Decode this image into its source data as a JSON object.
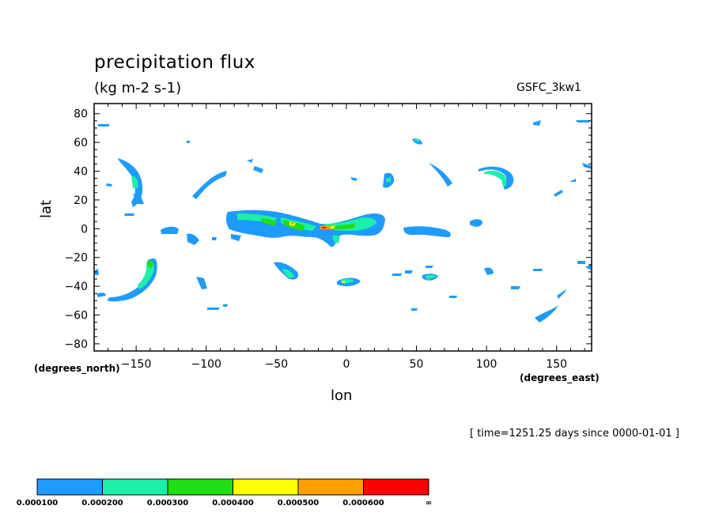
{
  "chart_data": {
    "type": "heatmap",
    "title": "precipitation flux",
    "units_label": "(kg m-2 s-1)",
    "source_label": "GSFC_3kw1",
    "xlabel": "lon",
    "ylabel": "lat",
    "x_units_label": "(degrees_east)",
    "y_units_label": "(degrees_north)",
    "xlim": [
      -180,
      175
    ],
    "ylim": [
      -85,
      87
    ],
    "x_ticks": [
      -150,
      -100,
      -50,
      0,
      50,
      100,
      150
    ],
    "x_tick_labels": [
      "−150",
      "−100",
      "−50",
      "0",
      "50",
      "100",
      "150"
    ],
    "y_ticks": [
      80,
      60,
      40,
      20,
      0,
      -20,
      -40,
      -60,
      -80
    ],
    "y_tick_labels": [
      "80",
      "60",
      "40",
      "20",
      "0",
      "−20",
      "−40",
      "−60",
      "−80"
    ],
    "time_label": "[ time=1251.25 days since 0000-01-01 ]",
    "levels": [
      {
        "label": "0.000100",
        "color": "#1e9bff"
      },
      {
        "label": "0.000200",
        "color": "#1cf0a8"
      },
      {
        "label": "0.000300",
        "color": "#22dc16"
      },
      {
        "label": "0.000400",
        "color": "#ffff00"
      },
      {
        "label": "0.000500",
        "color": "#ffa000"
      },
      {
        "label": "0.000600",
        "color": "#ff0000"
      },
      {
        "label": "∞",
        "color": null
      }
    ],
    "regions": [
      {
        "lon": [
          -170,
          -140
        ],
        "lat": [
          47,
          30
        ],
        "level": 1
      },
      {
        "lon": [
          -140,
          -175
        ],
        "lat": [
          -25,
          -50
        ],
        "level": 1
      },
      {
        "lon": [
          -100,
          -85
        ],
        "lat": [
          38,
          22
        ],
        "level": 1
      },
      {
        "lon": [
          -85,
          25
        ],
        "lat": [
          8,
          -5
        ],
        "level": 2
      },
      {
        "lon": [
          -40,
          -30
        ],
        "lat": [
          4,
          1
        ],
        "level": 4
      },
      {
        "lon": [
          -18,
          -12
        ],
        "lat": [
          1,
          -1
        ],
        "level": 6
      },
      {
        "lon": [
          30,
          70
        ],
        "lat": [
          0,
          -5
        ],
        "level": 1
      },
      {
        "lon": [
          105,
          120
        ],
        "lat": [
          42,
          30
        ],
        "level": 1
      },
      {
        "lon": [
          -45,
          -35
        ],
        "lat": [
          -25,
          -35
        ],
        "level": 1
      },
      {
        "lon": [
          -5,
          5
        ],
        "lat": [
          -38,
          -40
        ],
        "level": 2
      },
      {
        "lon": [
          55,
          65
        ],
        "lat": [
          -32,
          -37
        ],
        "level": 2
      }
    ]
  }
}
